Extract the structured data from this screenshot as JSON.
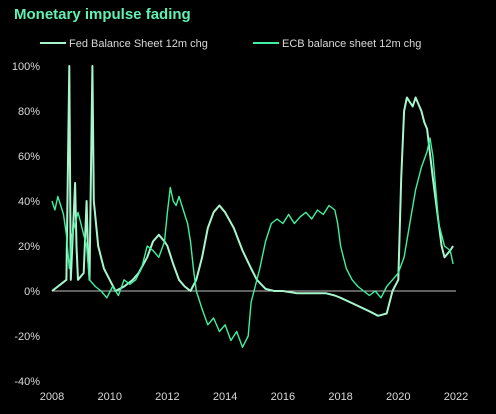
{
  "chart_data": {
    "type": "line",
    "title": "Monetary impulse fading",
    "xlabel": "",
    "ylabel": "",
    "xlim": [
      2008,
      2022
    ],
    "ylim": [
      -40,
      100
    ],
    "x_ticks": [
      "2008",
      "2010",
      "2012",
      "2014",
      "2016",
      "2018",
      "2020",
      "2022"
    ],
    "y_ticks": [
      "100%",
      "80%",
      "60%",
      "40%",
      "20%",
      "0%",
      "-20%",
      "-40%"
    ],
    "grid": false,
    "legend_position": "top",
    "colors": {
      "fed": "#a8f5cd",
      "ecb": "#3ff0a0",
      "zero_line": "#bfbfbf",
      "title": "#62f0b4"
    },
    "series": [
      {
        "name": "Fed Balance Sheet 12m chg",
        "points": [
          [
            2008.0,
            0
          ],
          [
            2008.3,
            3
          ],
          [
            2008.5,
            5
          ],
          [
            2008.6,
            100
          ],
          [
            2008.65,
            5
          ],
          [
            2008.8,
            48
          ],
          [
            2008.85,
            20
          ],
          [
            2008.9,
            5
          ],
          [
            2009.1,
            8
          ],
          [
            2009.2,
            40
          ],
          [
            2009.25,
            15
          ],
          [
            2009.3,
            5
          ],
          [
            2009.4,
            100
          ],
          [
            2009.45,
            40
          ],
          [
            2009.6,
            20
          ],
          [
            2009.8,
            10
          ],
          [
            2010.0,
            5
          ],
          [
            2010.2,
            0
          ],
          [
            2010.5,
            2
          ],
          [
            2010.8,
            5
          ],
          [
            2011.0,
            8
          ],
          [
            2011.3,
            15
          ],
          [
            2011.5,
            22
          ],
          [
            2011.7,
            25
          ],
          [
            2011.9,
            22
          ],
          [
            2012.0,
            20
          ],
          [
            2012.2,
            12
          ],
          [
            2012.4,
            5
          ],
          [
            2012.6,
            2
          ],
          [
            2012.8,
            0
          ],
          [
            2013.0,
            5
          ],
          [
            2013.2,
            15
          ],
          [
            2013.4,
            28
          ],
          [
            2013.6,
            35
          ],
          [
            2013.8,
            38
          ],
          [
            2014.0,
            35
          ],
          [
            2014.3,
            28
          ],
          [
            2014.6,
            18
          ],
          [
            2014.9,
            10
          ],
          [
            2015.1,
            5
          ],
          [
            2015.4,
            1
          ],
          [
            2015.7,
            0
          ],
          [
            2016.0,
            0
          ],
          [
            2016.5,
            -1
          ],
          [
            2017.0,
            -1
          ],
          [
            2017.5,
            -1
          ],
          [
            2017.8,
            -2
          ],
          [
            2018.0,
            -3
          ],
          [
            2018.5,
            -6
          ],
          [
            2019.0,
            -9
          ],
          [
            2019.3,
            -11
          ],
          [
            2019.6,
            -10
          ],
          [
            2019.8,
            0
          ],
          [
            2020.0,
            5
          ],
          [
            2020.1,
            50
          ],
          [
            2020.2,
            80
          ],
          [
            2020.3,
            86
          ],
          [
            2020.4,
            84
          ],
          [
            2020.5,
            82
          ],
          [
            2020.6,
            86
          ],
          [
            2020.8,
            80
          ],
          [
            2020.9,
            75
          ],
          [
            2021.0,
            72
          ],
          [
            2021.2,
            50
          ],
          [
            2021.4,
            30
          ],
          [
            2021.5,
            20
          ],
          [
            2021.6,
            15
          ],
          [
            2021.8,
            18
          ],
          [
            2021.9,
            20
          ]
        ]
      },
      {
        "name": "ECB balance sheet 12m chg",
        "points": [
          [
            2008.0,
            40
          ],
          [
            2008.1,
            36
          ],
          [
            2008.2,
            42
          ],
          [
            2008.3,
            38
          ],
          [
            2008.4,
            34
          ],
          [
            2008.5,
            25
          ],
          [
            2008.6,
            10
          ],
          [
            2008.7,
            25
          ],
          [
            2008.8,
            30
          ],
          [
            2008.9,
            35
          ],
          [
            2009.0,
            30
          ],
          [
            2009.1,
            25
          ],
          [
            2009.2,
            20
          ],
          [
            2009.3,
            5
          ],
          [
            2009.5,
            2
          ],
          [
            2009.7,
            0
          ],
          [
            2009.9,
            -3
          ],
          [
            2010.1,
            2
          ],
          [
            2010.3,
            -2
          ],
          [
            2010.5,
            5
          ],
          [
            2010.7,
            3
          ],
          [
            2010.9,
            5
          ],
          [
            2011.1,
            10
          ],
          [
            2011.3,
            20
          ],
          [
            2011.5,
            18
          ],
          [
            2011.7,
            15
          ],
          [
            2011.9,
            22
          ],
          [
            2012.0,
            35
          ],
          [
            2012.1,
            46
          ],
          [
            2012.2,
            40
          ],
          [
            2012.3,
            38
          ],
          [
            2012.4,
            42
          ],
          [
            2012.5,
            38
          ],
          [
            2012.6,
            34
          ],
          [
            2012.7,
            30
          ],
          [
            2012.8,
            22
          ],
          [
            2012.9,
            10
          ],
          [
            2013.0,
            0
          ],
          [
            2013.2,
            -8
          ],
          [
            2013.4,
            -15
          ],
          [
            2013.6,
            -12
          ],
          [
            2013.8,
            -18
          ],
          [
            2014.0,
            -15
          ],
          [
            2014.2,
            -22
          ],
          [
            2014.4,
            -18
          ],
          [
            2014.6,
            -25
          ],
          [
            2014.8,
            -20
          ],
          [
            2014.9,
            -5
          ],
          [
            2015.0,
            0
          ],
          [
            2015.2,
            10
          ],
          [
            2015.4,
            22
          ],
          [
            2015.6,
            30
          ],
          [
            2015.8,
            32
          ],
          [
            2016.0,
            30
          ],
          [
            2016.2,
            34
          ],
          [
            2016.4,
            30
          ],
          [
            2016.6,
            33
          ],
          [
            2016.8,
            35
          ],
          [
            2017.0,
            32
          ],
          [
            2017.2,
            36
          ],
          [
            2017.4,
            34
          ],
          [
            2017.6,
            38
          ],
          [
            2017.8,
            36
          ],
          [
            2017.9,
            30
          ],
          [
            2018.0,
            20
          ],
          [
            2018.2,
            10
          ],
          [
            2018.4,
            5
          ],
          [
            2018.6,
            2
          ],
          [
            2018.8,
            0
          ],
          [
            2019.0,
            -2
          ],
          [
            2019.2,
            0
          ],
          [
            2019.4,
            -3
          ],
          [
            2019.6,
            2
          ],
          [
            2019.8,
            5
          ],
          [
            2020.0,
            8
          ],
          [
            2020.2,
            15
          ],
          [
            2020.4,
            30
          ],
          [
            2020.6,
            45
          ],
          [
            2020.8,
            55
          ],
          [
            2021.0,
            62
          ],
          [
            2021.1,
            68
          ],
          [
            2021.2,
            60
          ],
          [
            2021.3,
            45
          ],
          [
            2021.4,
            30
          ],
          [
            2021.5,
            25
          ],
          [
            2021.6,
            20
          ],
          [
            2021.8,
            18
          ],
          [
            2021.9,
            12
          ]
        ]
      }
    ]
  }
}
